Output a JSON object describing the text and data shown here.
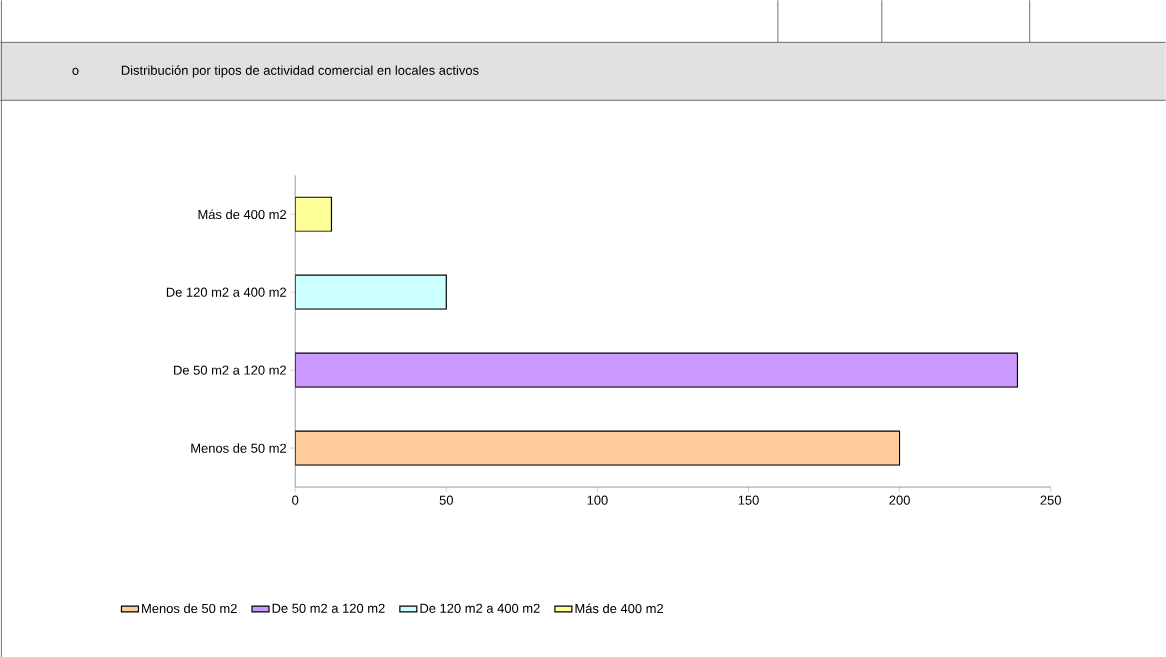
{
  "chart_data": {
    "type": "bar",
    "orientation": "horizontal",
    "title": "Distribución por tipos de actividad comercial en locales activos",
    "annotations": [
      "o"
    ],
    "categories": [
      "Más de 400 m2",
      "De 120 m2 a 400 m2",
      "De 50 m2 a 120 m2",
      "Menos de 50 m2"
    ],
    "series": [
      {
        "name": "Menos de 50 m2",
        "color": "#ffcc99",
        "values": [
          null,
          null,
          null,
          200
        ]
      },
      {
        "name": "De 50 m2 a 120 m2",
        "color": "#cc99ff",
        "values": [
          null,
          null,
          239,
          null
        ]
      },
      {
        "name": "De 120 m2 a 400 m2",
        "color": "#ccffff",
        "values": [
          null,
          50,
          null,
          null
        ]
      },
      {
        "name": "Más de 400 m2",
        "color": "#ffff99",
        "values": [
          12,
          null,
          null,
          null
        ]
      }
    ],
    "xlim": [
      0,
      250
    ],
    "xticks": [
      0,
      50,
      100,
      150,
      200,
      250
    ],
    "grid": false,
    "legend": "bottom"
  }
}
